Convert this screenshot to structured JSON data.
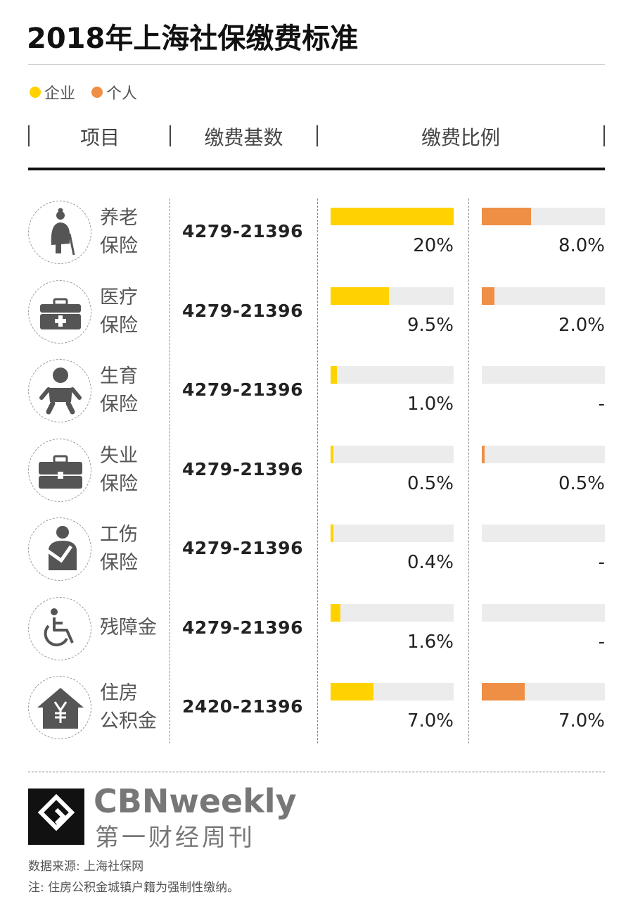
{
  "title": "2018年上海社保缴费标准",
  "legend": [
    {
      "label": "企业",
      "color": "#FFD200"
    },
    {
      "label": "个人",
      "color": "#EE8F45"
    }
  ],
  "headers": {
    "item": "项目",
    "base": "缴费基数",
    "ratio": "缴费比例"
  },
  "chart_data": {
    "type": "bar",
    "title": "2018年上海社保缴费标准",
    "categories": [
      "养老保险",
      "医疗保险",
      "生育保险",
      "失业保险",
      "工伤保险",
      "残障金",
      "住房公积金"
    ],
    "series": [
      {
        "name": "企业",
        "values": [
          20,
          9.5,
          1.0,
          0.5,
          0.4,
          1.6,
          7.0
        ],
        "color": "#FFD200"
      },
      {
        "name": "个人",
        "values": [
          8.0,
          2.0,
          0,
          0.5,
          0,
          0,
          7.0
        ],
        "color": "#EE8F45"
      }
    ],
    "ylim": [
      0,
      20
    ]
  },
  "rows": [
    {
      "name": "养老\n保险",
      "icon": "elderly-icon",
      "base": "4279-21396",
      "corp_label": "20%",
      "pers_label": "8.0%"
    },
    {
      "name": "医疗\n保险",
      "icon": "medical-kit-icon",
      "base": "4279-21396",
      "corp_label": "9.5%",
      "pers_label": "2.0%"
    },
    {
      "name": "生育\n保险",
      "icon": "baby-icon",
      "base": "4279-21396",
      "corp_label": "1.0%",
      "pers_label": "-"
    },
    {
      "name": "失业\n保险",
      "icon": "briefcase-icon",
      "base": "4279-21396",
      "corp_label": "0.5%",
      "pers_label": "0.5%"
    },
    {
      "name": "工伤\n保险",
      "icon": "injured-person-icon",
      "base": "4279-21396",
      "corp_label": "0.4%",
      "pers_label": "-"
    },
    {
      "name": "残障金",
      "icon": "wheelchair-icon",
      "base": "4279-21396",
      "corp_label": "1.6%",
      "pers_label": "-"
    },
    {
      "name": "住房\n公积金",
      "icon": "house-yuan-icon",
      "base": "2420-21396",
      "corp_label": "7.0%",
      "pers_label": "7.0%"
    }
  ],
  "brand": {
    "en": "CBNweekly",
    "cn": "第一财经周刊"
  },
  "source": "数据来源: 上海社保网",
  "note": "注: 住房公积金城镇户籍为强制性缴纳。"
}
